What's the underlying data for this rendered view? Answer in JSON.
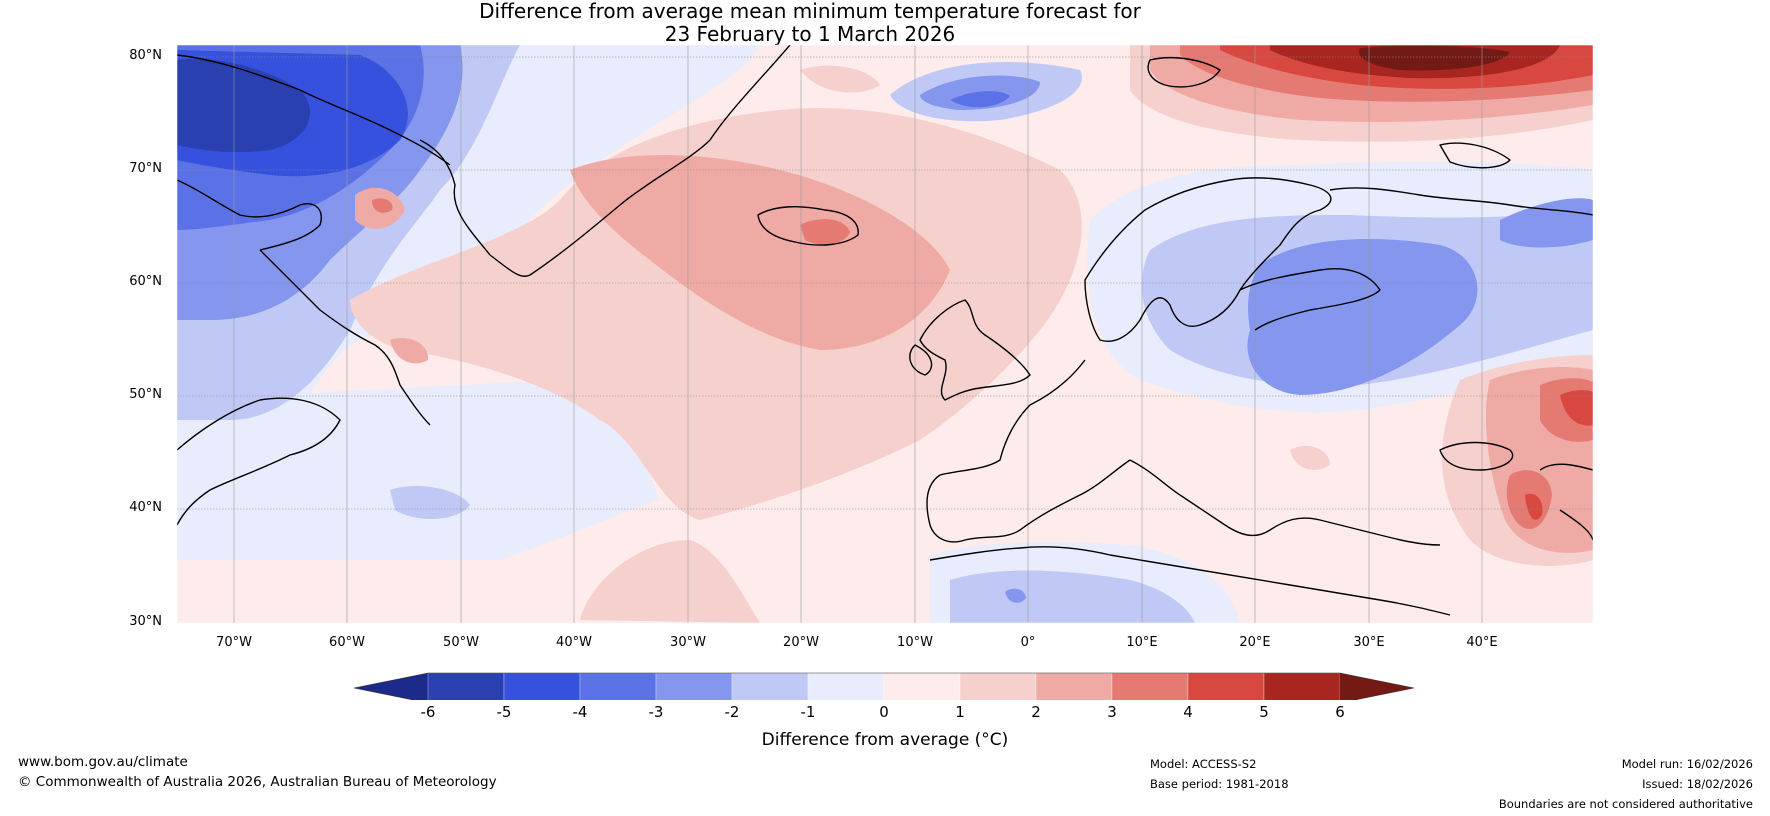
{
  "title": {
    "line1": "Difference from average mean minimum temperature forecast for",
    "line2": "23 February to 1 March 2026"
  },
  "map": {
    "latitude_labels": [
      "80°N",
      "70°N",
      "60°N",
      "50°N",
      "40°N",
      "30°N"
    ],
    "longitude_labels": [
      "70°W",
      "60°W",
      "50°W",
      "40°W",
      "30°W",
      "20°W",
      "10°W",
      "0°",
      "10°E",
      "20°E",
      "30°E",
      "40°E"
    ],
    "lat_range": [
      30,
      81
    ],
    "lon_range": [
      -75,
      50
    ]
  },
  "colorbar": {
    "title": "Difference from average (°C)",
    "ticks": [
      "-6",
      "-5",
      "-4",
      "-3",
      "-2",
      "-1",
      "0",
      "1",
      "2",
      "3",
      "4",
      "5",
      "6"
    ],
    "colors": [
      "#1c2a8a",
      "#2a3fb0",
      "#3551dd",
      "#5b72e6",
      "#8496ee",
      "#c0c9f5",
      "#e8ecfc",
      "#fdeceb",
      "#f5d0cd",
      "#efaaa6",
      "#e47a72",
      "#d84840",
      "#a8261f",
      "#741a14"
    ]
  },
  "footer": {
    "website": "www.bom.gov.au/climate",
    "copyright": "© Commonwealth of Australia 2026, Australian Bureau of Meteorology",
    "model": "Model: ACCESS-S2",
    "base_period": "Base period: 1981-2018",
    "model_run": "Model run: 16/02/2026",
    "issued": "Issued: 18/02/2026",
    "disclaimer": "Boundaries are not considered authoritative"
  }
}
